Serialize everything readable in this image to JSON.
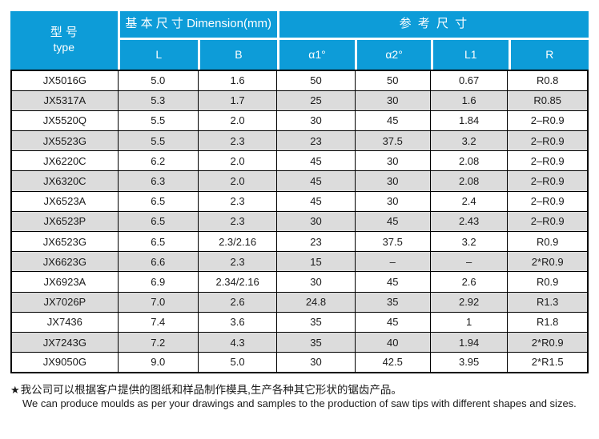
{
  "table": {
    "header": {
      "type_label_cn": "型  号",
      "type_label_en": "type",
      "basic_dim_label": "基 本 尺 寸 Dimension(mm)",
      "ref_dim_label": "参 考 尺 寸",
      "columns": [
        "L",
        "B",
        "α1°",
        "α2°",
        "L1",
        "R"
      ]
    },
    "rows": [
      [
        "JX5016G",
        "5.0",
        "1.6",
        "50",
        "50",
        "0.67",
        "R0.8"
      ],
      [
        "JX5317A",
        "5.3",
        "1.7",
        "25",
        "30",
        "1.6",
        "R0.85"
      ],
      [
        "JX5520Q",
        "5.5",
        "2.0",
        "30",
        "45",
        "1.84",
        "2–R0.9"
      ],
      [
        "JX5523G",
        "5.5",
        "2.3",
        "23",
        "37.5",
        "3.2",
        "2–R0.9"
      ],
      [
        "JX6220C",
        "6.2",
        "2.0",
        "45",
        "30",
        "2.08",
        "2–R0.9"
      ],
      [
        "JX6320C",
        "6.3",
        "2.0",
        "45",
        "30",
        "2.08",
        "2–R0.9"
      ],
      [
        "JX6523A",
        "6.5",
        "2.3",
        "45",
        "30",
        "2.4",
        "2–R0.9"
      ],
      [
        "JX6523P",
        "6.5",
        "2.3",
        "30",
        "45",
        "2.43",
        "2–R0.9"
      ],
      [
        "JX6523G",
        "6.5",
        "2.3/2.16",
        "23",
        "37.5",
        "3.2",
        "R0.9"
      ],
      [
        "JX6623G",
        "6.6",
        "2.3",
        "15",
        "–",
        "–",
        "2*R0.9"
      ],
      [
        "JX6923A",
        "6.9",
        "2.34/2.16",
        "30",
        "45",
        "2.6",
        "R0.9"
      ],
      [
        "JX7026P",
        "7.0",
        "2.6",
        "24.8",
        "35",
        "2.92",
        "R1.3"
      ],
      [
        "JX7436",
        "7.4",
        "3.6",
        "35",
        "45",
        "1",
        "R1.8"
      ],
      [
        "JX7243G",
        "7.2",
        "4.3",
        "35",
        "40",
        "1.94",
        "2*R0.9"
      ],
      [
        "JX9050G",
        "9.0",
        "5.0",
        "30",
        "42.5",
        "3.95",
        "2*R1.5"
      ]
    ]
  },
  "footer": {
    "star": "★",
    "line_cn": "我公司可以根据客户提供的图纸和样品制作模具,生产各种其它形状的锯齿产品。",
    "line_en": "We can produce moulds as per your drawings and samples to the production of saw tips with different shapes and sizes."
  },
  "colors": {
    "header_blue": "#0d9cd8",
    "row_alt_gray": "#dcdcdc",
    "border_black": "#000000"
  }
}
